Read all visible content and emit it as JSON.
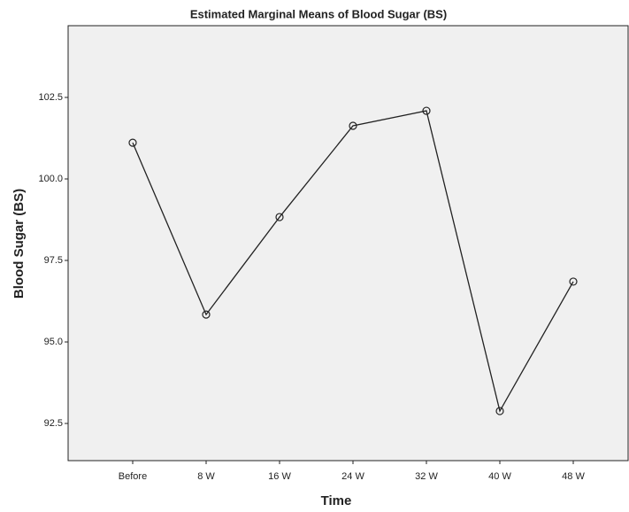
{
  "chart_data": {
    "type": "line",
    "title": "Estimated Marginal Means of Blood Sugar (BS)",
    "x_label": "Time",
    "y_label": "Blood Sugar (BS)",
    "categories": [
      "Before",
      "8 W",
      "16 W",
      "24 W",
      "32 W",
      "40 W",
      "48 W"
    ],
    "values": [
      101.11,
      95.84,
      98.83,
      101.63,
      102.09,
      92.88,
      96.85
    ],
    "color": "#222222",
    "ylim": [
      91.36,
      104.7
    ],
    "yticks": [
      {
        "value": 92.5,
        "label": "92.5"
      },
      {
        "value": 95,
        "label": "95.0"
      },
      97.5,
      {
        "value": 100,
        "label": "100.0"
      },
      102.5
    ],
    "grid": false
  }
}
